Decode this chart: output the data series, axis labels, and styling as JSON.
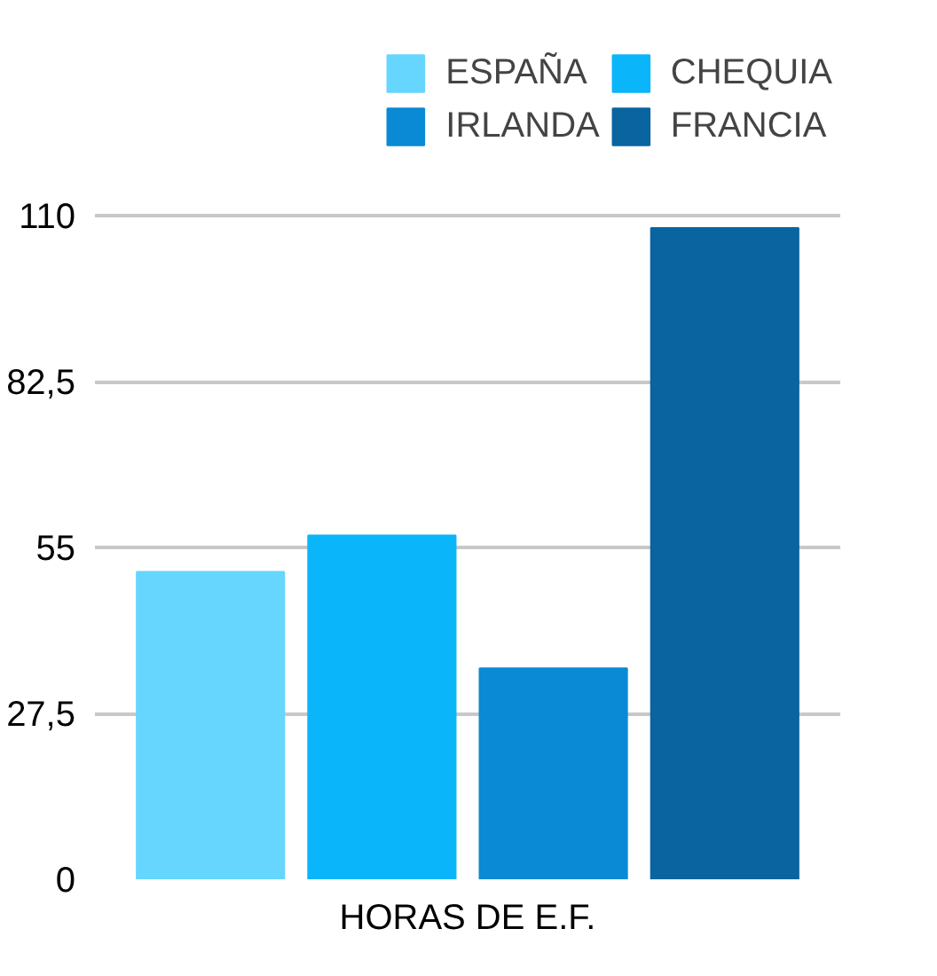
{
  "chart_data": {
    "type": "bar",
    "categories": [
      "HORAS DE E.F."
    ],
    "series": [
      {
        "name": "ESPAÑA",
        "color": "#66d6ff",
        "values": [
          51
        ]
      },
      {
        "name": "CHEQUIA",
        "color": "#0bb5fa",
        "values": [
          57
        ]
      },
      {
        "name": "IRLANDA",
        "color": "#0a8ad4",
        "values": [
          35
        ]
      },
      {
        "name": "FRANCIA",
        "color": "#0a64a0",
        "values": [
          108
        ]
      }
    ],
    "ylim": [
      0,
      110
    ],
    "yticks": [
      0,
      {
        "value": 27.5,
        "label": "27,5"
      },
      55,
      {
        "value": 82.5,
        "label": "82,5"
      },
      110
    ],
    "grid": "y",
    "legend": "top"
  }
}
